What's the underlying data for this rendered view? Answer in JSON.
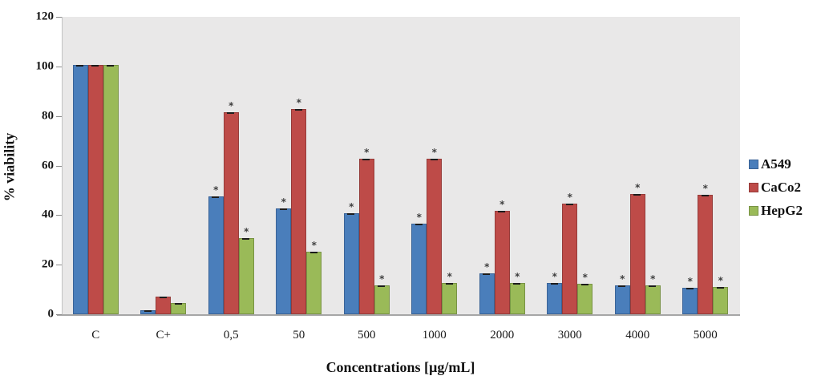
{
  "chart_data": {
    "type": "bar",
    "title": "",
    "xlabel": "Concentrations [µg/mL]",
    "ylabel": "% viability",
    "categories": [
      "C",
      "C+",
      "0,5",
      "50",
      "500",
      "1000",
      "2000",
      "3000",
      "4000",
      "5000"
    ],
    "series": [
      {
        "name": "A549",
        "color": "#4a7ebb",
        "border_color": "#3a6397",
        "values": [
          100,
          1,
          47,
          42,
          40,
          36,
          16,
          12,
          11,
          10
        ],
        "significant": [
          false,
          false,
          true,
          true,
          true,
          true,
          true,
          true,
          true,
          true
        ]
      },
      {
        "name": "CaCo2",
        "color": "#be4b48",
        "border_color": "#953b39",
        "values": [
          100,
          6.5,
          81,
          82,
          62,
          62,
          41,
          44,
          48,
          47.5
        ],
        "significant": [
          false,
          false,
          true,
          true,
          true,
          true,
          true,
          true,
          true,
          true
        ]
      },
      {
        "name": "HepG2",
        "color": "#9aba58",
        "border_color": "#789344",
        "values": [
          100,
          4,
          30,
          24.5,
          11,
          12,
          12,
          11.5,
          11,
          10.5
        ],
        "significant": [
          false,
          false,
          true,
          true,
          true,
          true,
          true,
          true,
          true,
          true
        ]
      }
    ],
    "y_ticks": [
      0,
      20,
      40,
      60,
      80,
      100,
      120
    ],
    "ylim": [
      0,
      120
    ],
    "grid": false,
    "legend_position": "right",
    "error_caps": true,
    "significance_marker": "*",
    "plot_background": "#e9e8e8"
  }
}
